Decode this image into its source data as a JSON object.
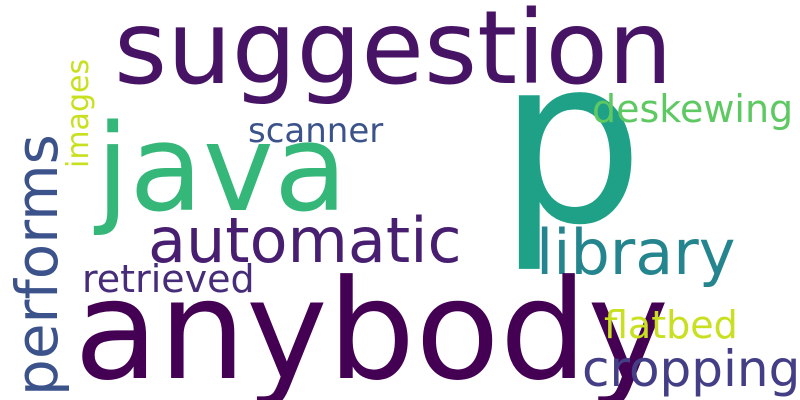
{
  "words": {
    "p": {
      "text": "p",
      "color": "#1fa188"
    },
    "anybody": {
      "text": "anybody",
      "color": "#440154"
    },
    "suggestion": {
      "text": "suggestion",
      "color": "#471365"
    },
    "java": {
      "text": "java",
      "color": "#35b779"
    },
    "automatic": {
      "text": "automatic",
      "color": "#481f70"
    },
    "library": {
      "text": "library",
      "color": "#25858e"
    },
    "performs": {
      "text": "performs",
      "color": "#3b528b"
    },
    "cropping": {
      "text": "cropping",
      "color": "#433e85"
    },
    "scanner": {
      "text": "scanner",
      "color": "#3b528b"
    },
    "deskewing": {
      "text": "deskewing",
      "color": "#5ec962"
    },
    "retrieved": {
      "text": "retrieved",
      "color": "#472c7a"
    },
    "flatbed": {
      "text": "flatbed",
      "color": "#c8e020"
    },
    "images": {
      "text": "images",
      "color": "#c8e020"
    }
  }
}
